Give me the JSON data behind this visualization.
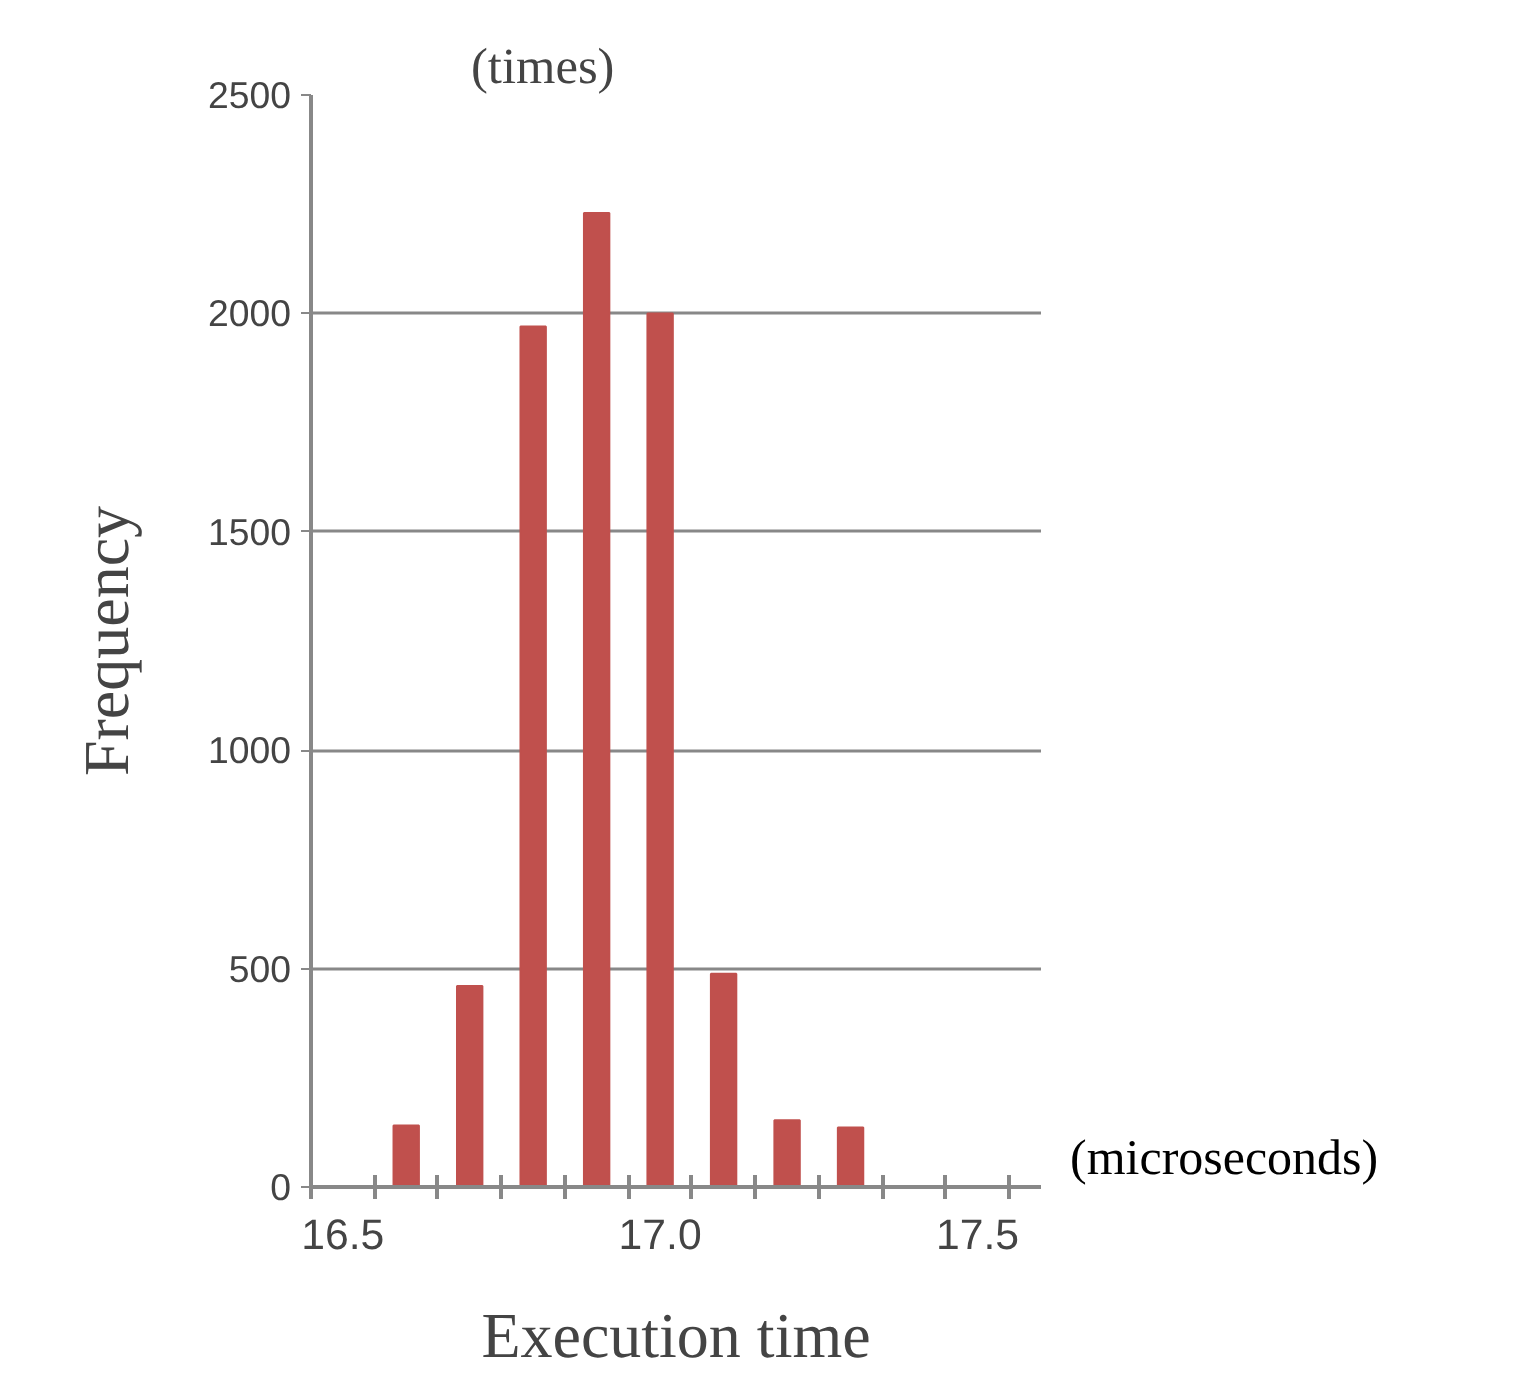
{
  "chart_data": {
    "type": "bar",
    "xlabel": "Execution time",
    "ylabel": "Frequency",
    "annotations": [
      "(times)",
      "(microseconds)"
    ],
    "x": [
      16.6,
      16.7,
      16.8,
      16.9,
      17.0,
      17.1,
      17.2,
      17.3
    ],
    "values": [
      141,
      460,
      1970,
      2230,
      2000,
      488,
      153,
      136
    ],
    "color": "#c0504d",
    "xlim": [
      16.45,
      17.6
    ],
    "xticks": [
      {
        "value": 16.45,
        "label": null
      },
      16.5,
      {
        "value": 16.55,
        "label": null
      },
      {
        "value": 16.65,
        "label": null
      },
      {
        "value": 16.75,
        "label": null
      },
      {
        "value": 16.85,
        "label": null
      },
      {
        "value": 16.95,
        "label": null
      },
      {
        "value": 17.0,
        "label": "17.0"
      },
      {
        "value": 17.05,
        "label": null
      },
      {
        "value": 17.15,
        "label": null
      },
      {
        "value": 17.25,
        "label": null
      },
      {
        "value": 17.35,
        "label": null
      },
      {
        "value": 17.45,
        "label": null
      },
      17.5,
      {
        "value": 17.55,
        "label": null
      }
    ],
    "ylim": [
      0,
      2500
    ],
    "yticks": [
      0,
      500,
      1000,
      1500,
      2000,
      2500
    ],
    "grid": "y"
  }
}
